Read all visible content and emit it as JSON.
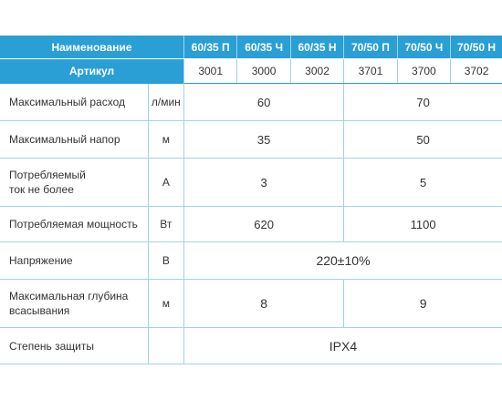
{
  "header": {
    "name_label": "Наименование",
    "article_label": "Артикул",
    "models": [
      "60/35 П",
      "60/35 Ч",
      "60/35 Н",
      "70/50 П",
      "70/50 Ч",
      "70/50 Н"
    ],
    "articles": [
      "3001",
      "3000",
      "3002",
      "3701",
      "3700",
      "3702"
    ]
  },
  "rows": [
    {
      "name": "Максимальный расход",
      "unit": "л/мин",
      "group1": "60",
      "group2": "70"
    },
    {
      "name": "Максимальный напор",
      "unit": "м",
      "group1": "35",
      "group2": "50"
    },
    {
      "name": "Потребляемый ток не более",
      "unit": "А",
      "group1": "3",
      "group2": "5"
    },
    {
      "name": "Потребляемая мощность",
      "unit": "Вт",
      "group1": "620",
      "group2": "1100"
    },
    {
      "name": "Напряжение",
      "unit": "В",
      "all": "220±10%"
    },
    {
      "name": "Максимальная глубина всасывания",
      "unit": "м",
      "group1": "8",
      "group2": "9"
    },
    {
      "name": "Степень защиты",
      "unit": "",
      "all": "IPX4"
    }
  ],
  "colors": {
    "header_bg": "#2a9fd6",
    "grid": "#9fd3ee",
    "text": "#333333"
  }
}
